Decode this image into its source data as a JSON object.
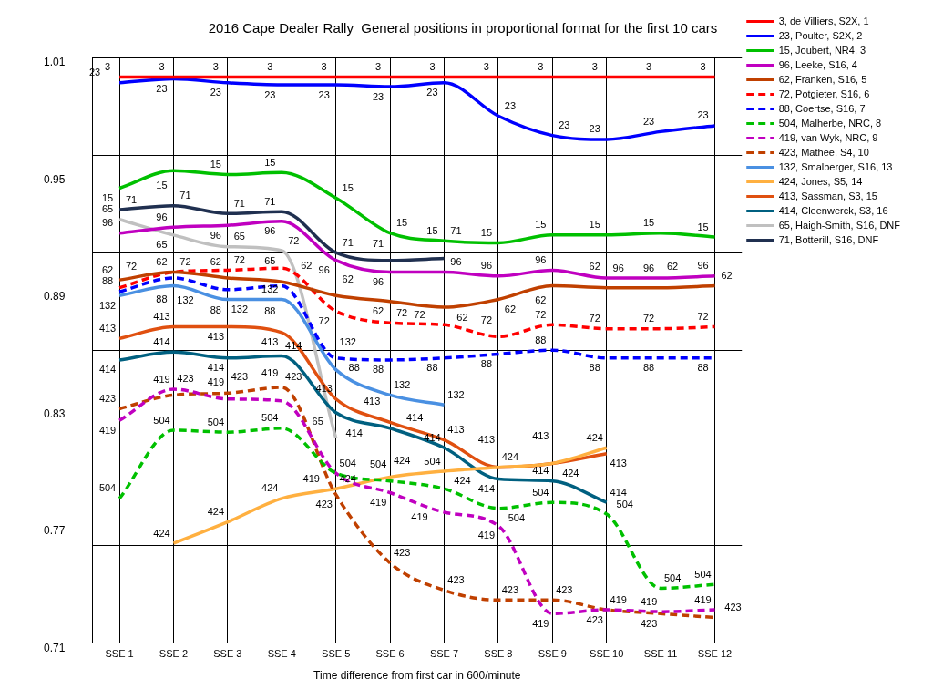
{
  "chart_data": {
    "type": "line",
    "title": "2016 Cape Dealer Rally  General positions in proportional format for the first 10 cars",
    "xlabel": "Time difference from first car in 600/minute",
    "categories": [
      "SSE 1",
      "SSE 2",
      "SSE 3",
      "SSE 4",
      "SSE 5",
      "SSE 6",
      "SSE 7",
      "SSE 8",
      "SSE 9",
      "SSE 10",
      "SSE 11",
      "SSE 12"
    ],
    "ylim": [
      0.71,
      1.01
    ],
    "yticks": [
      0.71,
      {
        "value": 0.76,
        "label": null
      },
      0.77,
      {
        "value": 0.81,
        "label": null
      },
      0.83,
      {
        "value": 0.86,
        "label": null
      },
      0.89,
      {
        "value": 0.91,
        "label": null
      },
      0.95,
      {
        "value": 0.96,
        "label": null
      },
      1.01
    ],
    "grid": true,
    "legend": "top right",
    "marker": "none",
    "line_style": "solid",
    "series": [
      {
        "name": "3, de Villiers, S2X, 1",
        "color": "#ff0000",
        "values": [
          1.0,
          1.0,
          1.0,
          1.0,
          1.0,
          1.0,
          1.0,
          1.0,
          1.0,
          1.0,
          1.0,
          1.0
        ]
      },
      {
        "name": "23, Poulter, S2X, 2",
        "color": "#0000ff",
        "values": [
          0.997,
          0.999,
          0.997,
          0.996,
          0.996,
          0.995,
          0.997,
          0.98,
          0.97,
          0.968,
          0.972,
          0.975
        ]
      },
      {
        "name": "15, Joubert, NR4, 3",
        "color": "#00c000",
        "values": [
          0.943,
          0.952,
          0.95,
          0.951,
          0.938,
          0.92,
          0.916,
          0.915,
          0.919,
          0.919,
          0.92,
          0.918
        ]
      },
      {
        "name": "96, Leeke, S16, 4",
        "color": "#c000c0",
        "values": [
          0.92,
          0.923,
          0.924,
          0.926,
          0.906,
          0.9,
          0.9,
          0.898,
          0.901,
          0.897,
          0.897,
          0.898
        ]
      },
      {
        "name": "62, Franken, S16, 5",
        "color": "#c04000",
        "values": [
          0.896,
          0.9,
          0.897,
          0.895,
          0.888,
          0.885,
          0.882,
          0.886,
          0.893,
          0.892,
          0.892,
          0.893
        ]
      },
      {
        "name": "72, Potgieter, S16, 6",
        "color": "#ff0000",
        "line_style": "dashed",
        "values": [
          0.892,
          0.9,
          0.901,
          0.902,
          0.88,
          0.874,
          0.873,
          0.867,
          0.873,
          0.871,
          0.871,
          0.872
        ]
      },
      {
        "name": "88, Coertse, S16, 7",
        "color": "#0000ff",
        "line_style": "dashed",
        "values": [
          0.89,
          0.897,
          0.891,
          0.893,
          0.856,
          0.855,
          0.856,
          0.858,
          0.86,
          0.856,
          0.856,
          0.856
        ]
      },
      {
        "name": "504, Malherbe, NRC, 8",
        "color": "#00c000",
        "line_style": "dashed",
        "values": [
          0.784,
          0.819,
          0.818,
          0.82,
          0.797,
          0.793,
          0.789,
          0.779,
          0.782,
          0.776,
          0.738,
          0.74
        ]
      },
      {
        "name": "419, van Wyk, NRC, 9",
        "color": "#c000c0",
        "line_style": "dashed",
        "values": [
          0.824,
          0.84,
          0.835,
          0.834,
          0.797,
          0.787,
          0.777,
          0.77,
          0.725,
          0.727,
          0.726,
          0.727
        ]
      },
      {
        "name": "423, Mathee, S4, 10",
        "color": "#c04000",
        "line_style": "dashed",
        "values": [
          0.83,
          0.837,
          0.838,
          0.841,
          0.786,
          0.751,
          0.737,
          0.732,
          0.732,
          0.727,
          0.725,
          0.723
        ]
      },
      {
        "name": "132, Smalberger, S16, 13",
        "color": "#4a90e2",
        "values": [
          0.888,
          0.893,
          0.886,
          0.886,
          0.85,
          0.837,
          0.832,
          null,
          null,
          null,
          null,
          null
        ]
      },
      {
        "name": "424, Jones, S5, 14",
        "color": "#ffb040",
        "values": [
          null,
          0.761,
          0.772,
          0.784,
          0.789,
          0.795,
          0.798,
          0.8,
          0.802,
          0.81,
          null,
          null
        ]
      },
      {
        "name": "413, Sassman, S3, 15",
        "color": "#e05010",
        "values": [
          0.866,
          0.872,
          0.872,
          0.869,
          0.835,
          0.823,
          0.814,
          0.8,
          0.802,
          0.807,
          null,
          null
        ]
      },
      {
        "name": "414, Cleenwerck, S3, 16",
        "color": "#006080",
        "values": [
          0.855,
          0.859,
          0.856,
          0.857,
          0.828,
          0.82,
          0.81,
          0.794,
          0.793,
          0.782,
          null,
          null
        ]
      },
      {
        "name": "65, Haigh-Smith, S16, DNF",
        "color": "#c0c0c0",
        "values": [
          0.927,
          0.919,
          0.913,
          0.911,
          0.815,
          null,
          null,
          null,
          null,
          null,
          null,
          null
        ]
      },
      {
        "name": "71, Botterill, S16, DNF",
        "color": "#203050",
        "values": [
          0.932,
          0.934,
          0.93,
          0.931,
          0.91,
          0.906,
          0.907,
          null,
          null,
          null,
          null,
          null
        ]
      }
    ],
    "annotations": [
      {
        "text": "3",
        "x": "SSE 1",
        "y": 1.0
      },
      {
        "text": "3",
        "x": "SSE 2",
        "y": 1.0
      },
      {
        "text": "3",
        "x": "SSE 3",
        "y": 1.0
      },
      {
        "text": "3",
        "x": "SSE 4",
        "y": 1.0
      },
      {
        "text": "3",
        "x": "SSE 5",
        "y": 1.0
      },
      {
        "text": "3",
        "x": "SSE 6",
        "y": 1.0
      },
      {
        "text": "3",
        "x": "SSE 7",
        "y": 1.0
      },
      {
        "text": "3",
        "x": "SSE 8",
        "y": 1.0
      },
      {
        "text": "3",
        "x": "SSE 9",
        "y": 1.0
      },
      {
        "text": "3",
        "x": "SSE 10",
        "y": 1.0
      },
      {
        "text": "3",
        "x": "SSE 11",
        "y": 1.0
      },
      {
        "text": "3",
        "x": "SSE 12",
        "y": 1.0
      },
      {
        "text": "23",
        "x": "SSE 1",
        "y": 0.997
      },
      {
        "text": "23",
        "x": "SSE 2",
        "y": 0.999
      },
      {
        "text": "23",
        "x": "SSE 3",
        "y": 0.997
      },
      {
        "text": "23",
        "x": "SSE 4",
        "y": 0.996
      },
      {
        "text": "23",
        "x": "SSE 5",
        "y": 0.996
      },
      {
        "text": "23",
        "x": "SSE 6",
        "y": 0.995
      },
      {
        "text": "23",
        "x": "SSE 7",
        "y": 0.997
      },
      {
        "text": "23",
        "x": "SSE 8",
        "y": 0.98
      },
      {
        "text": "23",
        "x": "SSE 9",
        "y": 0.97
      },
      {
        "text": "23",
        "x": "SSE 10",
        "y": 0.968
      },
      {
        "text": "23",
        "x": "SSE 11",
        "y": 0.972
      },
      {
        "text": "23",
        "x": "SSE 12",
        "y": 0.975
      },
      {
        "text": "15",
        "x": "SSE 1",
        "y": 0.943
      },
      {
        "text": "15",
        "x": "SSE 2",
        "y": 0.952
      },
      {
        "text": "15",
        "x": "SSE 3",
        "y": 0.95
      },
      {
        "text": "15",
        "x": "SSE 4",
        "y": 0.951
      },
      {
        "text": "15",
        "x": "SSE 5",
        "y": 0.938
      },
      {
        "text": "15",
        "x": "SSE 6",
        "y": 0.92
      },
      {
        "text": "15",
        "x": "SSE 7",
        "y": 0.916
      },
      {
        "text": "15",
        "x": "SSE 8",
        "y": 0.915
      },
      {
        "text": "15",
        "x": "SSE 9",
        "y": 0.919
      },
      {
        "text": "15",
        "x": "SSE 10",
        "y": 0.919
      },
      {
        "text": "15",
        "x": "SSE 11",
        "y": 0.92
      },
      {
        "text": "15",
        "x": "SSE 12",
        "y": 0.918
      },
      {
        "text": "96",
        "x": "SSE 1",
        "y": 0.92
      },
      {
        "text": "96",
        "x": "SSE 2",
        "y": 0.923
      },
      {
        "text": "96",
        "x": "SSE 3",
        "y": 0.924
      },
      {
        "text": "96",
        "x": "SSE 4",
        "y": 0.926
      },
      {
        "text": "96",
        "x": "SSE 5",
        "y": 0.906
      },
      {
        "text": "96",
        "x": "SSE 6",
        "y": 0.9
      },
      {
        "text": "96",
        "x": "SSE 7",
        "y": 0.9
      },
      {
        "text": "96",
        "x": "SSE 8",
        "y": 0.898
      },
      {
        "text": "96",
        "x": "SSE 9",
        "y": 0.901
      },
      {
        "text": "96",
        "x": "SSE 10",
        "y": 0.897
      },
      {
        "text": "96",
        "x": "SSE 11",
        "y": 0.897
      },
      {
        "text": "96",
        "x": "SSE 12",
        "y": 0.898
      },
      {
        "text": "62",
        "x": "SSE 1",
        "y": 0.896
      },
      {
        "text": "62",
        "x": "SSE 2",
        "y": 0.9
      },
      {
        "text": "62",
        "x": "SSE 3",
        "y": 0.897
      },
      {
        "text": "62",
        "x": "SSE 4",
        "y": 0.895
      },
      {
        "text": "62",
        "x": "SSE 5",
        "y": 0.888
      },
      {
        "text": "62",
        "x": "SSE 6",
        "y": 0.885
      },
      {
        "text": "62",
        "x": "SSE 7",
        "y": 0.882
      },
      {
        "text": "62",
        "x": "SSE 8",
        "y": 0.886
      },
      {
        "text": "62",
        "x": "SSE 9",
        "y": 0.893
      },
      {
        "text": "62",
        "x": "SSE 10",
        "y": 0.892
      },
      {
        "text": "62",
        "x": "SSE 11",
        "y": 0.892
      },
      {
        "text": "62",
        "x": "SSE 12",
        "y": 0.893
      },
      {
        "text": "72",
        "x": "SSE 1",
        "y": 0.892
      },
      {
        "text": "72",
        "x": "SSE 2",
        "y": 0.9
      },
      {
        "text": "72",
        "x": "SSE 3",
        "y": 0.901
      },
      {
        "text": "72",
        "x": "SSE 4",
        "y": 0.902
      },
      {
        "text": "72",
        "x": "SSE 5",
        "y": 0.88
      },
      {
        "text": "72",
        "x": "SSE 6",
        "y": 0.874
      },
      {
        "text": "72",
        "x": "SSE 7",
        "y": 0.873
      },
      {
        "text": "72",
        "x": "SSE 8",
        "y": 0.867
      },
      {
        "text": "72",
        "x": "SSE 9",
        "y": 0.873
      },
      {
        "text": "72",
        "x": "SSE 10",
        "y": 0.871
      },
      {
        "text": "72",
        "x": "SSE 11",
        "y": 0.871
      },
      {
        "text": "72",
        "x": "SSE 12",
        "y": 0.872
      },
      {
        "text": "88",
        "x": "SSE 1",
        "y": 0.89
      },
      {
        "text": "88",
        "x": "SSE 2",
        "y": 0.897
      },
      {
        "text": "88",
        "x": "SSE 3",
        "y": 0.891
      },
      {
        "text": "88",
        "x": "SSE 4",
        "y": 0.893
      },
      {
        "text": "88",
        "x": "SSE 5",
        "y": 0.856
      },
      {
        "text": "88",
        "x": "SSE 6",
        "y": 0.855
      },
      {
        "text": "88",
        "x": "SSE 7",
        "y": 0.856
      },
      {
        "text": "88",
        "x": "SSE 8",
        "y": 0.858
      },
      {
        "text": "88",
        "x": "SSE 9",
        "y": 0.86
      },
      {
        "text": "88",
        "x": "SSE 10",
        "y": 0.856
      },
      {
        "text": "88",
        "x": "SSE 11",
        "y": 0.856
      },
      {
        "text": "88",
        "x": "SSE 12",
        "y": 0.856
      },
      {
        "text": "504",
        "x": "SSE 1",
        "y": 0.784
      },
      {
        "text": "504",
        "x": "SSE 2",
        "y": 0.819
      },
      {
        "text": "504",
        "x": "SSE 3",
        "y": 0.818
      },
      {
        "text": "504",
        "x": "SSE 4",
        "y": 0.82
      },
      {
        "text": "504",
        "x": "SSE 5",
        "y": 0.797
      },
      {
        "text": "504",
        "x": "SSE 6",
        "y": 0.793
      },
      {
        "text": "504",
        "x": "SSE 7",
        "y": 0.789
      },
      {
        "text": "504",
        "x": "SSE 8",
        "y": 0.779
      },
      {
        "text": "504",
        "x": "SSE 9",
        "y": 0.782
      },
      {
        "text": "504",
        "x": "SSE 10",
        "y": 0.776
      },
      {
        "text": "504",
        "x": "SSE 11",
        "y": 0.738
      },
      {
        "text": "504",
        "x": "SSE 12",
        "y": 0.74
      },
      {
        "text": "419",
        "x": "SSE 1",
        "y": 0.824
      },
      {
        "text": "419",
        "x": "SSE 2",
        "y": 0.84
      },
      {
        "text": "419",
        "x": "SSE 3",
        "y": 0.835
      },
      {
        "text": "419",
        "x": "SSE 4",
        "y": 0.834
      },
      {
        "text": "419",
        "x": "SSE 5",
        "y": 0.797
      },
      {
        "text": "419",
        "x": "SSE 6",
        "y": 0.787
      },
      {
        "text": "419",
        "x": "SSE 7",
        "y": 0.777
      },
      {
        "text": "419",
        "x": "SSE 8",
        "y": 0.77
      },
      {
        "text": "419",
        "x": "SSE 9",
        "y": 0.725
      },
      {
        "text": "419",
        "x": "SSE 10",
        "y": 0.727
      },
      {
        "text": "419",
        "x": "SSE 11",
        "y": 0.726
      },
      {
        "text": "419",
        "x": "SSE 12",
        "y": 0.727
      },
      {
        "text": "423",
        "x": "SSE 1",
        "y": 0.83
      },
      {
        "text": "423",
        "x": "SSE 2",
        "y": 0.837
      },
      {
        "text": "423",
        "x": "SSE 3",
        "y": 0.838
      },
      {
        "text": "423",
        "x": "SSE 4",
        "y": 0.841
      },
      {
        "text": "423",
        "x": "SSE 5",
        "y": 0.786
      },
      {
        "text": "423",
        "x": "SSE 6",
        "y": 0.751
      },
      {
        "text": "423",
        "x": "SSE 7",
        "y": 0.737
      },
      {
        "text": "423",
        "x": "SSE 8",
        "y": 0.732
      },
      {
        "text": "423",
        "x": "SSE 9",
        "y": 0.732
      },
      {
        "text": "423",
        "x": "SSE 10",
        "y": 0.727
      },
      {
        "text": "423",
        "x": "SSE 11",
        "y": 0.725
      },
      {
        "text": "423",
        "x": "SSE 12",
        "y": 0.723
      },
      {
        "text": "132",
        "x": "SSE 1",
        "y": 0.888
      },
      {
        "text": "132",
        "x": "SSE 2",
        "y": 0.893
      },
      {
        "text": "132",
        "x": "SSE 3",
        "y": 0.886
      },
      {
        "text": "132",
        "x": "SSE 4",
        "y": 0.886
      },
      {
        "text": "132",
        "x": "SSE 5",
        "y": 0.85
      },
      {
        "text": "132",
        "x": "SSE 6",
        "y": 0.837
      },
      {
        "text": "132",
        "x": "SSE 7",
        "y": 0.832
      },
      {
        "text": "424",
        "x": "SSE 2",
        "y": 0.761
      },
      {
        "text": "424",
        "x": "SSE 3",
        "y": 0.772
      },
      {
        "text": "424",
        "x": "SSE 4",
        "y": 0.784
      },
      {
        "text": "424",
        "x": "SSE 5",
        "y": 0.789
      },
      {
        "text": "424",
        "x": "SSE 6",
        "y": 0.795
      },
      {
        "text": "424",
        "x": "SSE 7",
        "y": 0.798
      },
      {
        "text": "424",
        "x": "SSE 8",
        "y": 0.8
      },
      {
        "text": "424",
        "x": "SSE 9",
        "y": 0.802
      },
      {
        "text": "424",
        "x": "SSE 10",
        "y": 0.81
      },
      {
        "text": "413",
        "x": "SSE 1",
        "y": 0.866
      },
      {
        "text": "413",
        "x": "SSE 2",
        "y": 0.872
      },
      {
        "text": "413",
        "x": "SSE 3",
        "y": 0.872
      },
      {
        "text": "413",
        "x": "SSE 4",
        "y": 0.869
      },
      {
        "text": "413",
        "x": "SSE 5",
        "y": 0.835
      },
      {
        "text": "413",
        "x": "SSE 6",
        "y": 0.823
      },
      {
        "text": "413",
        "x": "SSE 7",
        "y": 0.814
      },
      {
        "text": "413",
        "x": "SSE 8",
        "y": 0.8
      },
      {
        "text": "413",
        "x": "SSE 9",
        "y": 0.802
      },
      {
        "text": "413",
        "x": "SSE 10",
        "y": 0.807
      },
      {
        "text": "414",
        "x": "SSE 1",
        "y": 0.855
      },
      {
        "text": "414",
        "x": "SSE 2",
        "y": 0.859
      },
      {
        "text": "414",
        "x": "SSE 3",
        "y": 0.856
      },
      {
        "text": "414",
        "x": "SSE 4",
        "y": 0.857
      },
      {
        "text": "414",
        "x": "SSE 5",
        "y": 0.828
      },
      {
        "text": "414",
        "x": "SSE 6",
        "y": 0.82
      },
      {
        "text": "414",
        "x": "SSE 7",
        "y": 0.81
      },
      {
        "text": "414",
        "x": "SSE 8",
        "y": 0.794
      },
      {
        "text": "414",
        "x": "SSE 9",
        "y": 0.793
      },
      {
        "text": "414",
        "x": "SSE 10",
        "y": 0.782
      },
      {
        "text": "65",
        "x": "SSE 1",
        "y": 0.927
      },
      {
        "text": "65",
        "x": "SSE 2",
        "y": 0.919
      },
      {
        "text": "65",
        "x": "SSE 3",
        "y": 0.913
      },
      {
        "text": "65",
        "x": "SSE 4",
        "y": 0.911
      },
      {
        "text": "65",
        "x": "SSE 5",
        "y": 0.815
      },
      {
        "text": "71",
        "x": "SSE 1",
        "y": 0.932
      },
      {
        "text": "71",
        "x": "SSE 2",
        "y": 0.934
      },
      {
        "text": "71",
        "x": "SSE 3",
        "y": 0.93
      },
      {
        "text": "71",
        "x": "SSE 4",
        "y": 0.931
      },
      {
        "text": "71",
        "x": "SSE 5",
        "y": 0.91
      },
      {
        "text": "71",
        "x": "SSE 6",
        "y": 0.906
      },
      {
        "text": "71",
        "x": "SSE 7",
        "y": 0.907
      }
    ]
  }
}
